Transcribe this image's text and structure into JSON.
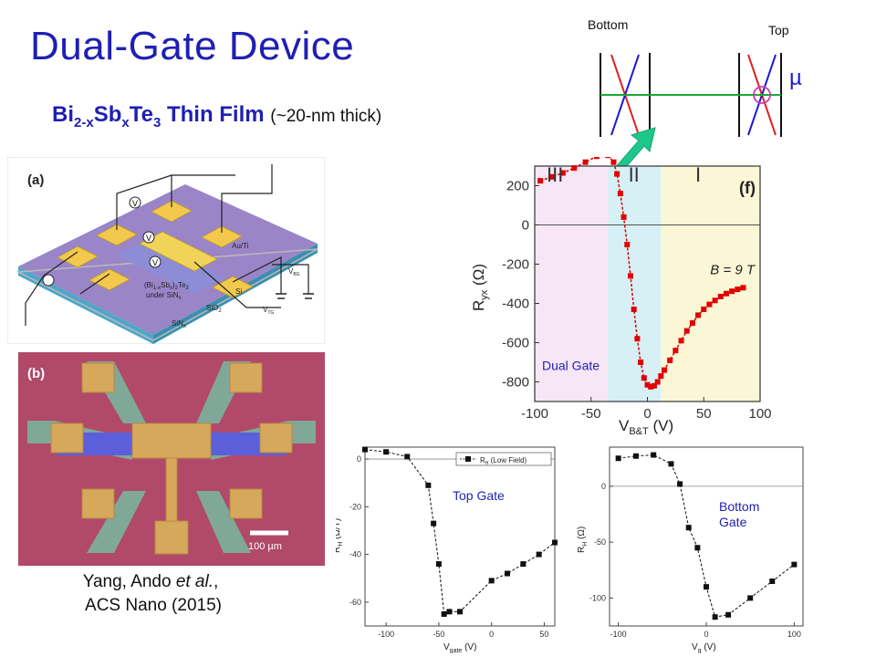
{
  "title": "Dual-Gate Device",
  "subtitle": {
    "formula_parts": [
      "Bi",
      "2-x",
      "Sb",
      "x",
      "Te",
      "3",
      " Thin Film"
    ],
    "note": "(~20-nm thick)"
  },
  "citation": {
    "line1_prefix": "Yang, Ando ",
    "line1_etal": "et al.",
    "line1_suffix": ",",
    "line2": "ACS Nano (2015)"
  },
  "device_schematic": {
    "panel_label": "(a)",
    "labels": [
      "Au/Ti",
      "V",
      "V",
      "V",
      "(Bi",
      "1-x",
      "Sb",
      "x",
      ")",
      "2",
      "Te",
      "3",
      "under SiN",
      "x",
      "Si",
      "SiO",
      "2",
      "SiN",
      "x",
      "V",
      "BG",
      "V",
      "TG"
    ]
  },
  "micrograph": {
    "panel_label": "(b)",
    "scale_bar": "100 µm"
  },
  "band_diagram": {
    "bottom_label": "Bottom",
    "top_label": "Top",
    "mu_label": "µ"
  },
  "colors": {
    "title_blue": "#1f1fb4",
    "data_red": "#e00000",
    "green_line": "#1aa832",
    "arrow_green": "#1ec78c"
  },
  "chart_data": [
    {
      "type": "line",
      "panel_label": "(f)",
      "series_label": "Dual Gate",
      "field_label": "B = 9 T",
      "regions": [
        "III",
        "II",
        "I"
      ],
      "xlabel": "V_B&T (V)",
      "ylabel": "R_yx (Ω)",
      "xlim": [
        -100,
        100
      ],
      "ylim": [
        -900,
        300
      ],
      "x_ticks": [
        -100,
        -50,
        0,
        50,
        100
      ],
      "y_ticks": [
        200,
        0,
        -200,
        -400,
        -600,
        -800
      ],
      "region_bounds": [
        [
          -100,
          -35
        ],
        [
          -35,
          12
        ],
        [
          12,
          100
        ]
      ],
      "x": [
        -95,
        -85,
        -75,
        -65,
        -55,
        -45,
        -40,
        -35,
        -30,
        -27,
        -24,
        -21,
        -18,
        -15,
        -12,
        -9,
        -6,
        -3,
        0,
        3,
        6,
        9,
        12,
        15,
        20,
        25,
        30,
        35,
        40,
        45,
        50,
        55,
        60,
        65,
        70,
        75,
        80,
        85
      ],
      "y": [
        225,
        245,
        265,
        290,
        320,
        350,
        360,
        355,
        320,
        260,
        160,
        40,
        -100,
        -260,
        -430,
        -580,
        -700,
        -780,
        -815,
        -825,
        -820,
        -800,
        -770,
        -740,
        -690,
        -640,
        -590,
        -540,
        -500,
        -460,
        -430,
        -405,
        -385,
        -365,
        -350,
        -338,
        -328,
        -320
      ]
    },
    {
      "type": "line",
      "series_label": "Top Gate",
      "legend": "R_H (Low Field)",
      "xlabel": "V_gate (V)",
      "ylabel": "R_H (Ω/T)",
      "xlim": [
        -120,
        60
      ],
      "ylim": [
        -70,
        5
      ],
      "x_ticks": [
        -100,
        -50,
        0,
        50
      ],
      "y_ticks": [
        0,
        -20,
        -40,
        -60
      ],
      "x": [
        -120,
        -100,
        -80,
        -60,
        -55,
        -50,
        -45,
        -40,
        -30,
        0,
        15,
        30,
        45,
        60
      ],
      "y": [
        4,
        3,
        1,
        -11,
        -27,
        -44,
        -65,
        -64,
        -64,
        -51,
        -48,
        -44,
        -40,
        -35
      ]
    },
    {
      "type": "line",
      "series_label": "Bottom\nGate",
      "xlabel": "V_g (V)",
      "ylabel": "R_H (Ω)",
      "xlim": [
        -110,
        110
      ],
      "ylim": [
        -125,
        35
      ],
      "x_ticks": [
        -100,
        0,
        100
      ],
      "y_ticks": [
        0,
        -50,
        -100
      ],
      "x": [
        -100,
        -80,
        -60,
        -40,
        -30,
        -20,
        -10,
        0,
        10,
        25,
        50,
        75,
        100
      ],
      "y": [
        25,
        27,
        28,
        20,
        2,
        -37,
        -55,
        -90,
        -117,
        -115,
        -100,
        -85,
        -70
      ]
    }
  ]
}
